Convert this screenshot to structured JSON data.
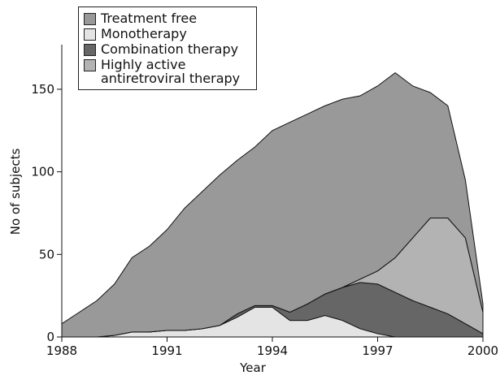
{
  "chart_data": {
    "type": "stacked_area",
    "x_label": "Year",
    "y_label": "No of subjects",
    "x": [
      1988,
      1988.5,
      1989,
      1989.5,
      1990,
      1990.5,
      1991,
      1991.5,
      1992,
      1992.5,
      1993,
      1993.5,
      1994,
      1994.5,
      1995,
      1995.5,
      1996,
      1996.5,
      1997,
      1997.5,
      1998,
      1998.5,
      1999,
      1999.5,
      2000
    ],
    "series": [
      {
        "name": "Treatment free",
        "color": "#999999",
        "values": [
          8,
          15,
          22,
          31,
          45,
          52,
          61,
          74,
          83,
          91,
          93,
          96,
          106,
          115,
          115,
          114,
          114,
          111,
          112,
          112,
          92,
          76,
          68,
          35,
          5
        ]
      },
      {
        "name": "Monotherapy",
        "color": "#e4e4e4",
        "values": [
          0,
          0,
          0,
          1,
          3,
          3,
          4,
          4,
          5,
          7,
          12,
          18,
          18,
          10,
          10,
          13,
          10,
          5,
          2,
          0,
          0,
          0,
          0,
          0,
          0
        ]
      },
      {
        "name": "Combination therapy",
        "color": "#666666",
        "values": [
          0,
          0,
          0,
          0,
          0,
          0,
          0,
          0,
          0,
          0,
          2,
          1,
          1,
          5,
          10,
          13,
          20,
          28,
          30,
          27,
          22,
          18,
          14,
          8,
          2
        ]
      },
      {
        "name": "Highly active antiretroviral therapy",
        "color": "#b3b3b3",
        "values": [
          0,
          0,
          0,
          0,
          0,
          0,
          0,
          0,
          0,
          0,
          0,
          0,
          0,
          0,
          0,
          0,
          0,
          2,
          8,
          21,
          38,
          54,
          58,
          52,
          13
        ]
      }
    ],
    "xlim": [
      1988,
      2000
    ],
    "ylim": [
      0,
      177
    ],
    "xticks": [
      1988,
      1991,
      1994,
      1997,
      2000
    ],
    "yticks": [
      0,
      50,
      100,
      150
    ]
  }
}
